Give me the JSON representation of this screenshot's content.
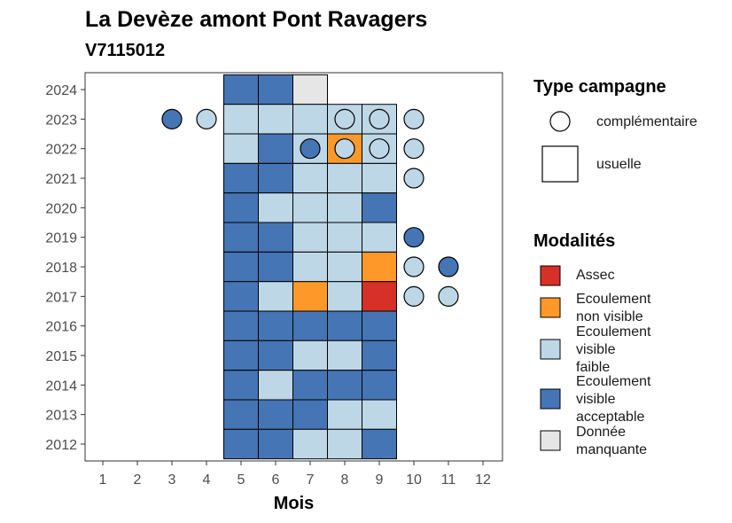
{
  "chart_data": {
    "type": "heatmap",
    "title": "La Devèze amont Pont Ravagers",
    "subtitle": "V7115012",
    "xlabel": "Mois",
    "ylabel": "",
    "x_ticks": [
      1,
      2,
      3,
      4,
      5,
      6,
      7,
      8,
      9,
      10,
      11,
      12
    ],
    "y_ticks": [
      2012,
      2013,
      2014,
      2015,
      2016,
      2017,
      2018,
      2019,
      2020,
      2021,
      2022,
      2023,
      2024
    ],
    "xlim": [
      0.5,
      12.5
    ],
    "ylim": [
      2011.4,
      2024.6
    ],
    "grid": false,
    "modalites": [
      {
        "key": "assec",
        "label": "Assec",
        "color": "#D73027"
      },
      {
        "key": "nv",
        "label": "Ecoulement non visible",
        "color": "#FE9929"
      },
      {
        "key": "vf",
        "label": "Ecoulement visible faible",
        "color": "#BDD7E7"
      },
      {
        "key": "va",
        "label": "Ecoulement visible acceptable",
        "color": "#4575B4"
      },
      {
        "key": "dm",
        "label": "Donnée manquante",
        "color": "#E6E6E6"
      }
    ],
    "types": [
      {
        "key": "complementaire",
        "label": "complémentaire",
        "shape": "circle"
      },
      {
        "key": "usuelle",
        "label": "usuelle",
        "shape": "square"
      }
    ],
    "usuelle": [
      {
        "year": 2024,
        "month": 5,
        "m": "va"
      },
      {
        "year": 2024,
        "month": 6,
        "m": "va"
      },
      {
        "year": 2024,
        "month": 7,
        "m": "dm"
      },
      {
        "year": 2023,
        "month": 5,
        "m": "vf"
      },
      {
        "year": 2023,
        "month": 6,
        "m": "vf"
      },
      {
        "year": 2023,
        "month": 7,
        "m": "vf"
      },
      {
        "year": 2023,
        "month": 8,
        "m": "vf"
      },
      {
        "year": 2023,
        "month": 9,
        "m": "vf"
      },
      {
        "year": 2022,
        "month": 5,
        "m": "vf"
      },
      {
        "year": 2022,
        "month": 6,
        "m": "va"
      },
      {
        "year": 2022,
        "month": 7,
        "m": "vf"
      },
      {
        "year": 2022,
        "month": 8,
        "m": "nv"
      },
      {
        "year": 2022,
        "month": 9,
        "m": "vf"
      },
      {
        "year": 2021,
        "month": 5,
        "m": "va"
      },
      {
        "year": 2021,
        "month": 6,
        "m": "va"
      },
      {
        "year": 2021,
        "month": 7,
        "m": "vf"
      },
      {
        "year": 2021,
        "month": 8,
        "m": "vf"
      },
      {
        "year": 2021,
        "month": 9,
        "m": "vf"
      },
      {
        "year": 2020,
        "month": 5,
        "m": "va"
      },
      {
        "year": 2020,
        "month": 6,
        "m": "vf"
      },
      {
        "year": 2020,
        "month": 7,
        "m": "vf"
      },
      {
        "year": 2020,
        "month": 8,
        "m": "vf"
      },
      {
        "year": 2020,
        "month": 9,
        "m": "va"
      },
      {
        "year": 2019,
        "month": 5,
        "m": "va"
      },
      {
        "year": 2019,
        "month": 6,
        "m": "va"
      },
      {
        "year": 2019,
        "month": 7,
        "m": "vf"
      },
      {
        "year": 2019,
        "month": 8,
        "m": "vf"
      },
      {
        "year": 2019,
        "month": 9,
        "m": "vf"
      },
      {
        "year": 2018,
        "month": 5,
        "m": "va"
      },
      {
        "year": 2018,
        "month": 6,
        "m": "va"
      },
      {
        "year": 2018,
        "month": 7,
        "m": "vf"
      },
      {
        "year": 2018,
        "month": 8,
        "m": "vf"
      },
      {
        "year": 2018,
        "month": 9,
        "m": "nv"
      },
      {
        "year": 2017,
        "month": 5,
        "m": "va"
      },
      {
        "year": 2017,
        "month": 6,
        "m": "vf"
      },
      {
        "year": 2017,
        "month": 7,
        "m": "nv"
      },
      {
        "year": 2017,
        "month": 8,
        "m": "vf"
      },
      {
        "year": 2017,
        "month": 9,
        "m": "assec"
      },
      {
        "year": 2016,
        "month": 5,
        "m": "va"
      },
      {
        "year": 2016,
        "month": 6,
        "m": "va"
      },
      {
        "year": 2016,
        "month": 7,
        "m": "va"
      },
      {
        "year": 2016,
        "month": 8,
        "m": "va"
      },
      {
        "year": 2016,
        "month": 9,
        "m": "va"
      },
      {
        "year": 2015,
        "month": 5,
        "m": "va"
      },
      {
        "year": 2015,
        "month": 6,
        "m": "va"
      },
      {
        "year": 2015,
        "month": 7,
        "m": "vf"
      },
      {
        "year": 2015,
        "month": 8,
        "m": "vf"
      },
      {
        "year": 2015,
        "month": 9,
        "m": "va"
      },
      {
        "year": 2014,
        "month": 5,
        "m": "va"
      },
      {
        "year": 2014,
        "month": 6,
        "m": "vf"
      },
      {
        "year": 2014,
        "month": 7,
        "m": "va"
      },
      {
        "year": 2014,
        "month": 8,
        "m": "va"
      },
      {
        "year": 2014,
        "month": 9,
        "m": "va"
      },
      {
        "year": 2013,
        "month": 5,
        "m": "va"
      },
      {
        "year": 2013,
        "month": 6,
        "m": "va"
      },
      {
        "year": 2013,
        "month": 7,
        "m": "va"
      },
      {
        "year": 2013,
        "month": 8,
        "m": "vf"
      },
      {
        "year": 2013,
        "month": 9,
        "m": "vf"
      },
      {
        "year": 2012,
        "month": 5,
        "m": "va"
      },
      {
        "year": 2012,
        "month": 6,
        "m": "va"
      },
      {
        "year": 2012,
        "month": 7,
        "m": "vf"
      },
      {
        "year": 2012,
        "month": 8,
        "m": "vf"
      },
      {
        "year": 2012,
        "month": 9,
        "m": "va"
      }
    ],
    "complementaire": [
      {
        "year": 2023,
        "month": 3,
        "m": "va"
      },
      {
        "year": 2023,
        "month": 4,
        "m": "vf"
      },
      {
        "year": 2023,
        "month": 8,
        "m": "vf"
      },
      {
        "year": 2023,
        "month": 9,
        "m": "vf"
      },
      {
        "year": 2023,
        "month": 10,
        "m": "vf"
      },
      {
        "year": 2022,
        "month": 7,
        "m": "va"
      },
      {
        "year": 2022,
        "month": 8,
        "m": "vf"
      },
      {
        "year": 2022,
        "month": 9,
        "m": "vf"
      },
      {
        "year": 2022,
        "month": 10,
        "m": "vf"
      },
      {
        "year": 2021,
        "month": 10,
        "m": "vf"
      },
      {
        "year": 2019,
        "month": 10,
        "m": "va"
      },
      {
        "year": 2018,
        "month": 10,
        "m": "vf"
      },
      {
        "year": 2018,
        "month": 11,
        "m": "va"
      },
      {
        "year": 2017,
        "month": 10,
        "m": "vf"
      },
      {
        "year": 2017,
        "month": 11,
        "m": "vf"
      }
    ]
  },
  "legend": {
    "type_title": "Type campagne",
    "modalites_title": "Modalités",
    "type_labels": [
      "complémentaire",
      "usuelle"
    ],
    "modalite_lines": [
      [
        "Assec"
      ],
      [
        "Ecoulement",
        "non visible"
      ],
      [
        "Ecoulement",
        "visible",
        "faible"
      ],
      [
        "Ecoulement",
        "visible",
        "acceptable"
      ],
      [
        "Donnée",
        "manquante"
      ]
    ]
  }
}
